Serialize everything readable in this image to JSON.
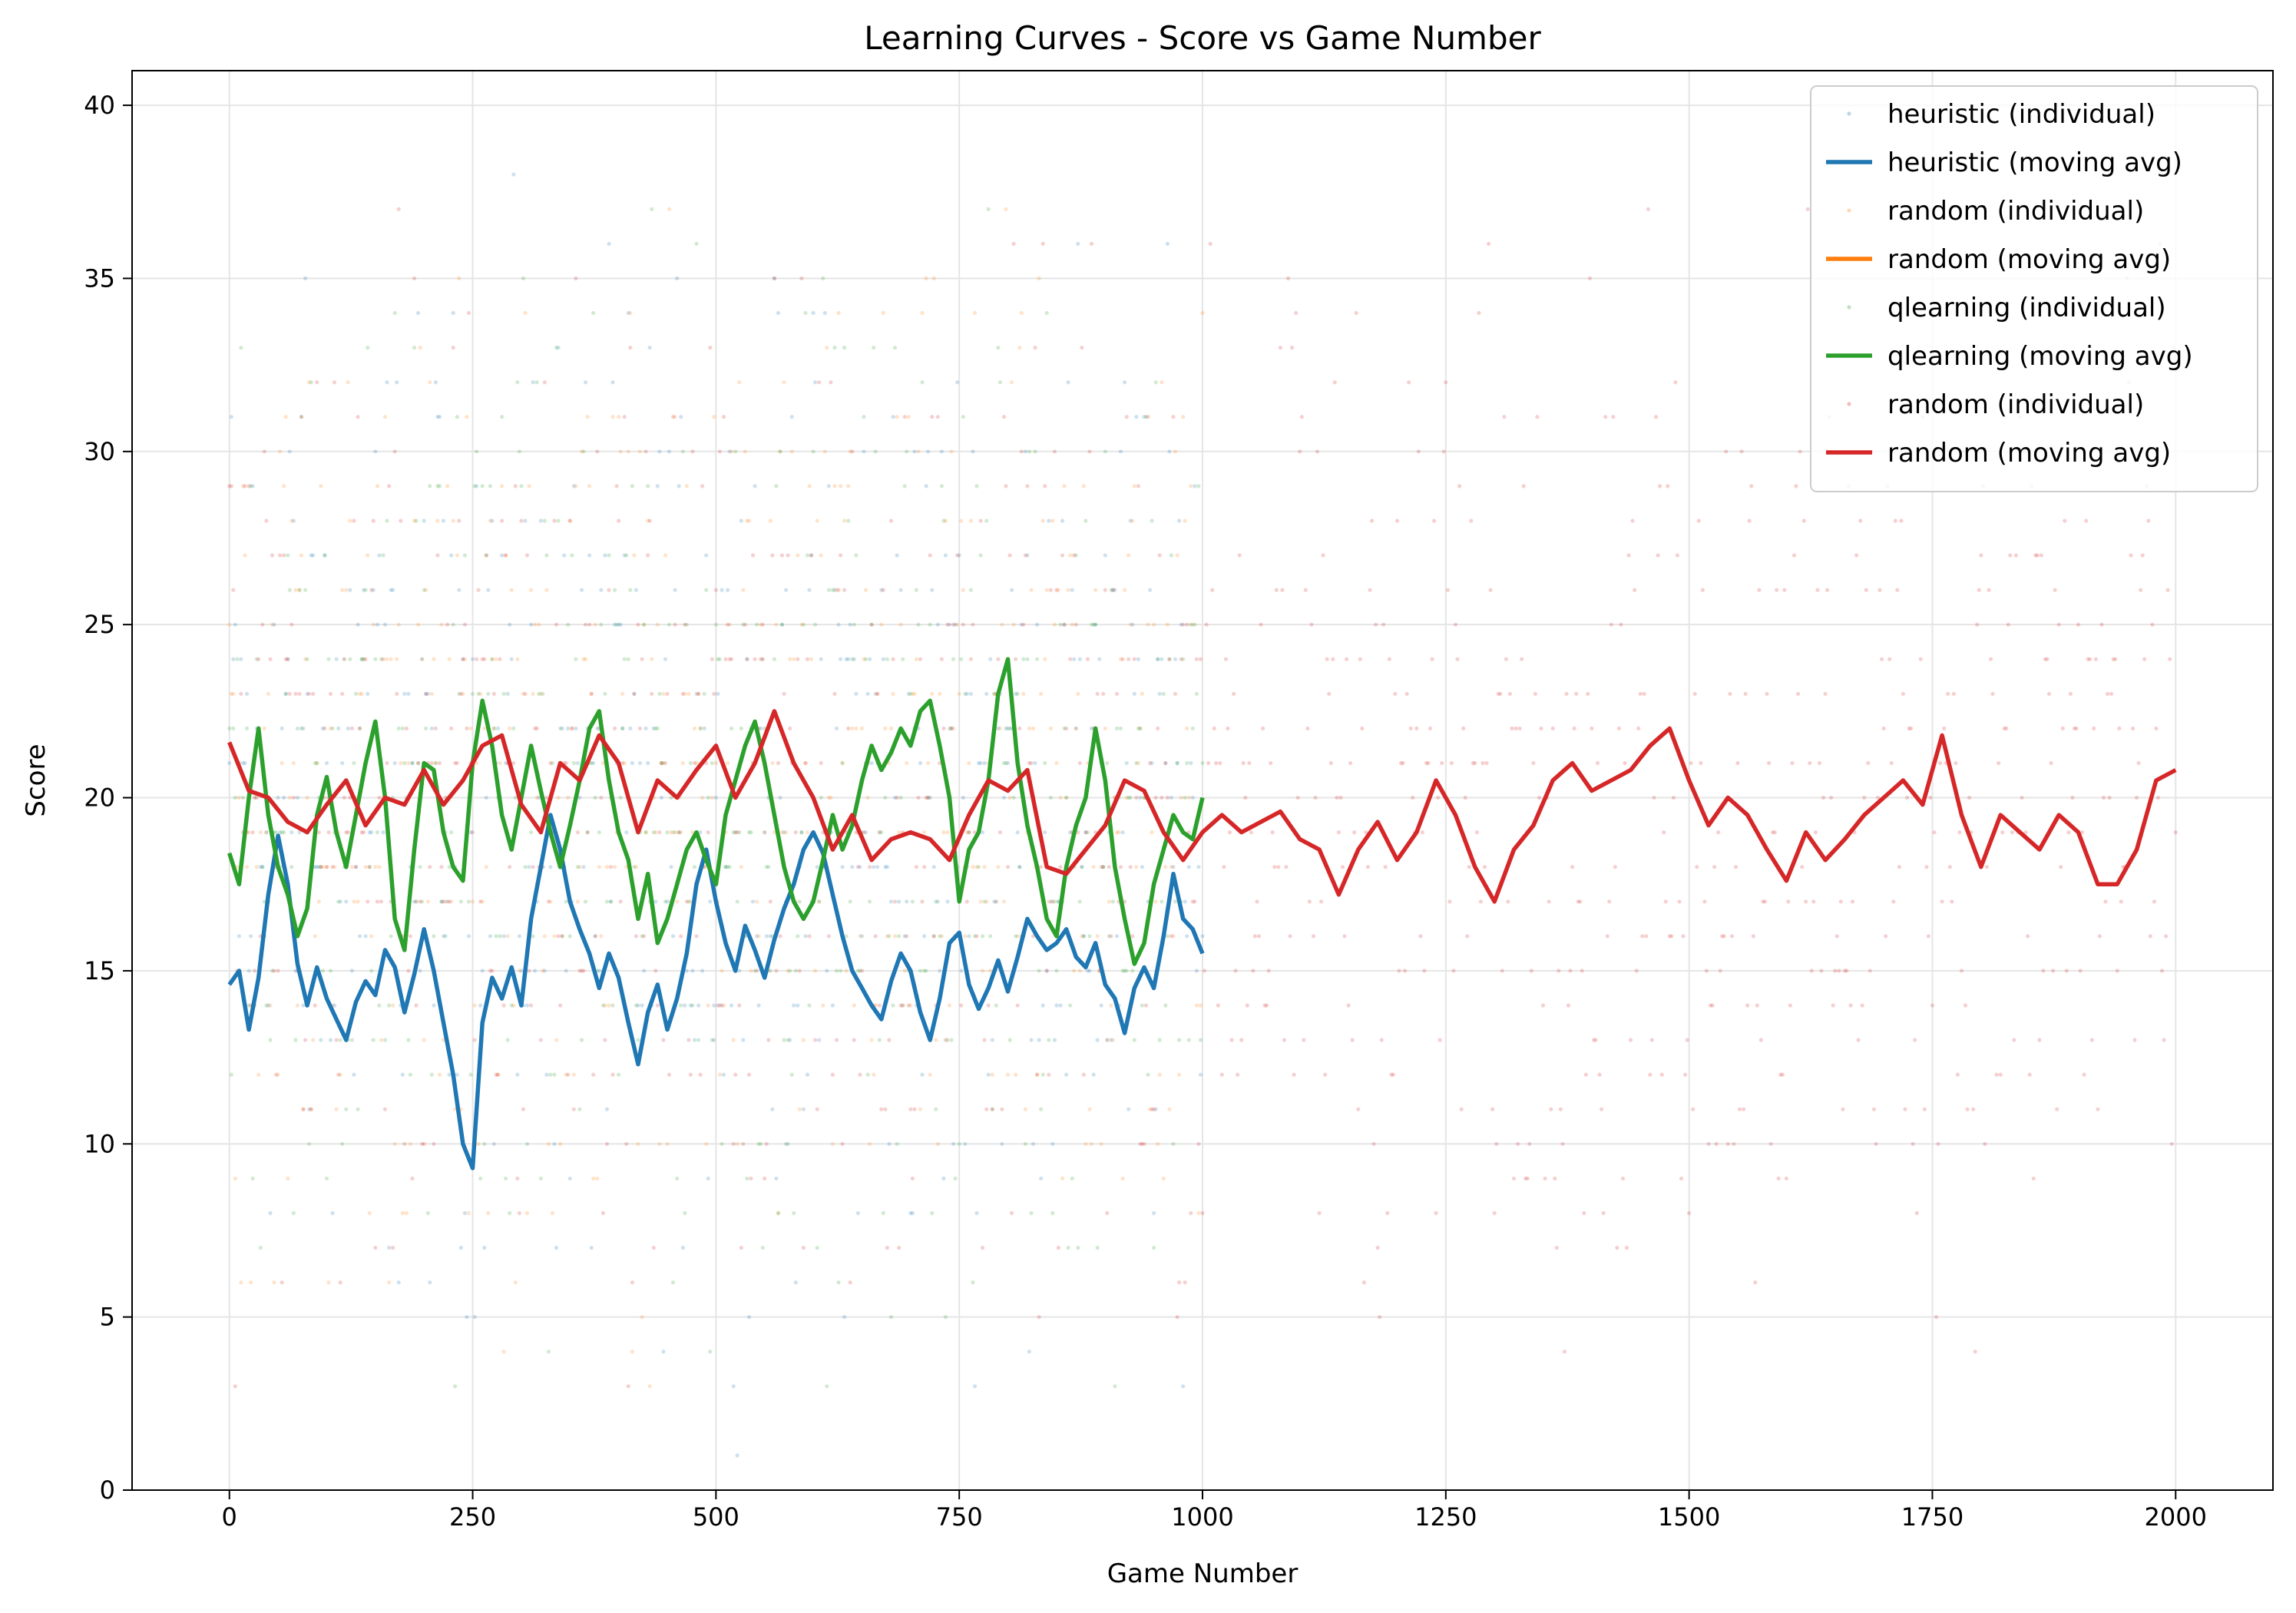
{
  "chart_data": {
    "type": "line",
    "title": "Learning Curves - Score vs Game Number",
    "xlabel": "Game Number",
    "ylabel": "Score",
    "xlim": [
      -100,
      2100
    ],
    "ylim": [
      0,
      41
    ],
    "xticks": [
      0,
      250,
      500,
      750,
      1000,
      1250,
      1500,
      1750,
      2000
    ],
    "yticks": [
      0,
      5,
      10,
      15,
      20,
      25,
      30,
      35,
      40
    ],
    "xtick_labels": [
      "0",
      "250",
      "500",
      "750",
      "1000",
      "1250",
      "1500",
      "1750",
      "2000"
    ],
    "ytick_labels": [
      "0",
      "5",
      "10",
      "15",
      "20",
      "25",
      "30",
      "35",
      "40"
    ],
    "grid": true,
    "legend_position": "top-right",
    "legend": [
      {
        "label": "heuristic (individual)",
        "kind": "scatter",
        "color": "#1f77b4"
      },
      {
        "label": "heuristic (moving avg)",
        "kind": "line",
        "color": "#1f77b4"
      },
      {
        "label": "random (individual)",
        "kind": "scatter",
        "color": "#ff7f0e"
      },
      {
        "label": "random (moving avg)",
        "kind": "line",
        "color": "#ff7f0e"
      },
      {
        "label": "qlearning (individual)",
        "kind": "scatter",
        "color": "#2ca02c"
      },
      {
        "label": "qlearning (moving avg)",
        "kind": "line",
        "color": "#2ca02c"
      },
      {
        "label": "random (individual)",
        "kind": "scatter",
        "color": "#d62728"
      },
      {
        "label": "random (moving avg)",
        "kind": "line",
        "color": "#d62728"
      }
    ],
    "series": [
      {
        "name": "heuristic (moving avg)",
        "color": "#1f77b4",
        "x": [
          0,
          10,
          20,
          30,
          40,
          50,
          60,
          70,
          80,
          90,
          100,
          110,
          120,
          130,
          140,
          150,
          160,
          170,
          180,
          190,
          200,
          210,
          220,
          230,
          240,
          250,
          260,
          270,
          280,
          290,
          300,
          310,
          320,
          330,
          340,
          350,
          360,
          370,
          380,
          390,
          400,
          410,
          420,
          430,
          440,
          450,
          460,
          470,
          480,
          490,
          500,
          510,
          520,
          530,
          540,
          550,
          560,
          570,
          580,
          590,
          600,
          610,
          620,
          630,
          640,
          650,
          660,
          670,
          680,
          690,
          700,
          710,
          720,
          730,
          740,
          750,
          760,
          770,
          780,
          790,
          800,
          810,
          820,
          830,
          840,
          850,
          860,
          870,
          880,
          890,
          900,
          910,
          920,
          930,
          940,
          950,
          960,
          970,
          980,
          990,
          1000
        ],
        "y": [
          14.6,
          15.0,
          13.3,
          14.8,
          17.2,
          18.9,
          17.5,
          15.2,
          14.0,
          15.1,
          14.2,
          13.6,
          13.0,
          14.1,
          14.7,
          14.3,
          15.6,
          15.1,
          13.8,
          14.9,
          16.2,
          15.0,
          13.5,
          12.0,
          10.0,
          9.3,
          13.5,
          14.8,
          14.2,
          15.1,
          14.0,
          16.5,
          18.0,
          19.5,
          18.5,
          17.0,
          16.2,
          15.5,
          14.5,
          15.5,
          14.8,
          13.5,
          12.3,
          13.8,
          14.6,
          13.3,
          14.2,
          15.5,
          17.5,
          18.5,
          17.0,
          15.8,
          15.0,
          16.3,
          15.6,
          14.8,
          15.9,
          16.8,
          17.5,
          18.5,
          19.0,
          18.4,
          17.2,
          16.0,
          15.0,
          14.5,
          14.0,
          13.6,
          14.7,
          15.5,
          15.0,
          13.8,
          13.0,
          14.2,
          15.8,
          16.1,
          14.6,
          13.9,
          14.5,
          15.3,
          14.4,
          15.4,
          16.5,
          16.0,
          15.6,
          15.8,
          16.2,
          15.4,
          15.1,
          15.8,
          14.6,
          14.2,
          13.2,
          14.5,
          15.1,
          14.5,
          16.0,
          17.8,
          16.5,
          16.2,
          15.5
        ]
      },
      {
        "name": "qlearning (moving avg)",
        "color": "#2ca02c",
        "x": [
          0,
          10,
          20,
          30,
          40,
          50,
          60,
          70,
          80,
          90,
          100,
          110,
          120,
          130,
          140,
          150,
          160,
          170,
          180,
          190,
          200,
          210,
          220,
          230,
          240,
          250,
          260,
          270,
          280,
          290,
          300,
          310,
          320,
          330,
          340,
          350,
          360,
          370,
          380,
          390,
          400,
          410,
          420,
          430,
          440,
          450,
          460,
          470,
          480,
          490,
          500,
          510,
          520,
          530,
          540,
          550,
          560,
          570,
          580,
          590,
          600,
          610,
          620,
          630,
          640,
          650,
          660,
          670,
          680,
          690,
          700,
          710,
          720,
          730,
          740,
          750,
          760,
          770,
          780,
          790,
          800,
          810,
          820,
          830,
          840,
          850,
          860,
          870,
          880,
          890,
          900,
          910,
          920,
          930,
          940,
          950,
          960,
          970,
          980,
          990,
          1000
        ],
        "y": [
          18.4,
          17.5,
          20.0,
          22.0,
          19.5,
          18.0,
          17.2,
          16.0,
          16.8,
          19.5,
          20.6,
          19.0,
          18.0,
          19.5,
          21.0,
          22.2,
          20.0,
          16.5,
          15.6,
          18.5,
          21.0,
          20.8,
          19.0,
          18.0,
          17.6,
          21.0,
          22.8,
          21.5,
          19.5,
          18.5,
          20.0,
          21.5,
          20.2,
          19.0,
          18.0,
          19.2,
          20.5,
          22.0,
          22.5,
          20.5,
          19.0,
          18.2,
          16.5,
          17.8,
          15.8,
          16.5,
          17.5,
          18.5,
          19.0,
          18.2,
          17.5,
          19.5,
          20.5,
          21.5,
          22.2,
          21.0,
          19.5,
          18.0,
          17.0,
          16.5,
          17.0,
          18.2,
          19.5,
          18.5,
          19.2,
          20.5,
          21.5,
          20.8,
          21.3,
          22.0,
          21.5,
          22.5,
          22.8,
          21.5,
          20.0,
          17.0,
          18.5,
          19.0,
          20.5,
          23.0,
          24.0,
          21.0,
          19.2,
          18.0,
          16.5,
          16.0,
          18.0,
          19.2,
          20.0,
          22.0,
          20.5,
          18.0,
          16.5,
          15.2,
          15.8,
          17.5,
          18.5,
          19.5,
          19.0,
          18.8,
          20.0
        ]
      },
      {
        "name": "random (moving avg)",
        "color": "#d62728",
        "x": [
          0,
          20,
          40,
          60,
          80,
          100,
          120,
          140,
          160,
          180,
          200,
          220,
          240,
          260,
          280,
          300,
          320,
          340,
          360,
          380,
          400,
          420,
          440,
          460,
          480,
          500,
          520,
          540,
          560,
          580,
          600,
          620,
          640,
          660,
          680,
          700,
          720,
          740,
          760,
          780,
          800,
          820,
          840,
          860,
          880,
          900,
          920,
          940,
          960,
          980,
          1000,
          1020,
          1040,
          1060,
          1080,
          1100,
          1120,
          1140,
          1160,
          1180,
          1200,
          1220,
          1240,
          1260,
          1280,
          1300,
          1320,
          1340,
          1360,
          1380,
          1400,
          1420,
          1440,
          1460,
          1480,
          1500,
          1520,
          1540,
          1560,
          1580,
          1600,
          1620,
          1640,
          1660,
          1680,
          1700,
          1720,
          1740,
          1760,
          1780,
          1800,
          1820,
          1840,
          1860,
          1880,
          1900,
          1920,
          1940,
          1960,
          1980,
          2000
        ],
        "y": [
          21.6,
          20.2,
          20.0,
          19.3,
          19.0,
          19.8,
          20.5,
          19.2,
          20.0,
          19.8,
          20.8,
          19.8,
          20.5,
          21.5,
          21.8,
          19.8,
          19.0,
          21.0,
          20.5,
          21.8,
          21.0,
          19.0,
          20.5,
          20.0,
          20.8,
          21.5,
          20.0,
          21.0,
          22.5,
          21.0,
          20.0,
          18.5,
          19.5,
          18.2,
          18.8,
          19.0,
          18.8,
          18.2,
          19.5,
          20.5,
          20.2,
          20.8,
          18.0,
          17.8,
          18.5,
          19.2,
          20.5,
          20.2,
          19.0,
          18.2,
          19.0,
          19.5,
          19.0,
          19.3,
          19.6,
          18.8,
          18.5,
          17.2,
          18.5,
          19.3,
          18.2,
          19.0,
          20.5,
          19.5,
          18.0,
          17.0,
          18.5,
          19.2,
          20.5,
          21.0,
          20.2,
          20.5,
          20.8,
          21.5,
          22.0,
          20.5,
          19.2,
          20.0,
          19.5,
          18.5,
          17.6,
          19.0,
          18.2,
          18.8,
          19.5,
          20.0,
          20.5,
          19.8,
          21.8,
          19.5,
          18.0,
          19.5,
          19.0,
          18.5,
          19.5,
          19.0,
          17.5,
          17.5,
          18.5,
          20.5,
          20.8
        ]
      }
    ],
    "scatter_series": [
      {
        "name": "heuristic (individual)",
        "color": "#1f77b4",
        "x_range": [
          0,
          1000
        ]
      },
      {
        "name": "random (individual)",
        "color": "#ff7f0e",
        "x_range": [
          0,
          1000
        ]
      },
      {
        "name": "qlearning (individual)",
        "color": "#2ca02c",
        "x_range": [
          0,
          1000
        ]
      },
      {
        "name": "random (individual)",
        "color": "#d62728",
        "x_range": [
          0,
          2000
        ]
      }
    ]
  }
}
